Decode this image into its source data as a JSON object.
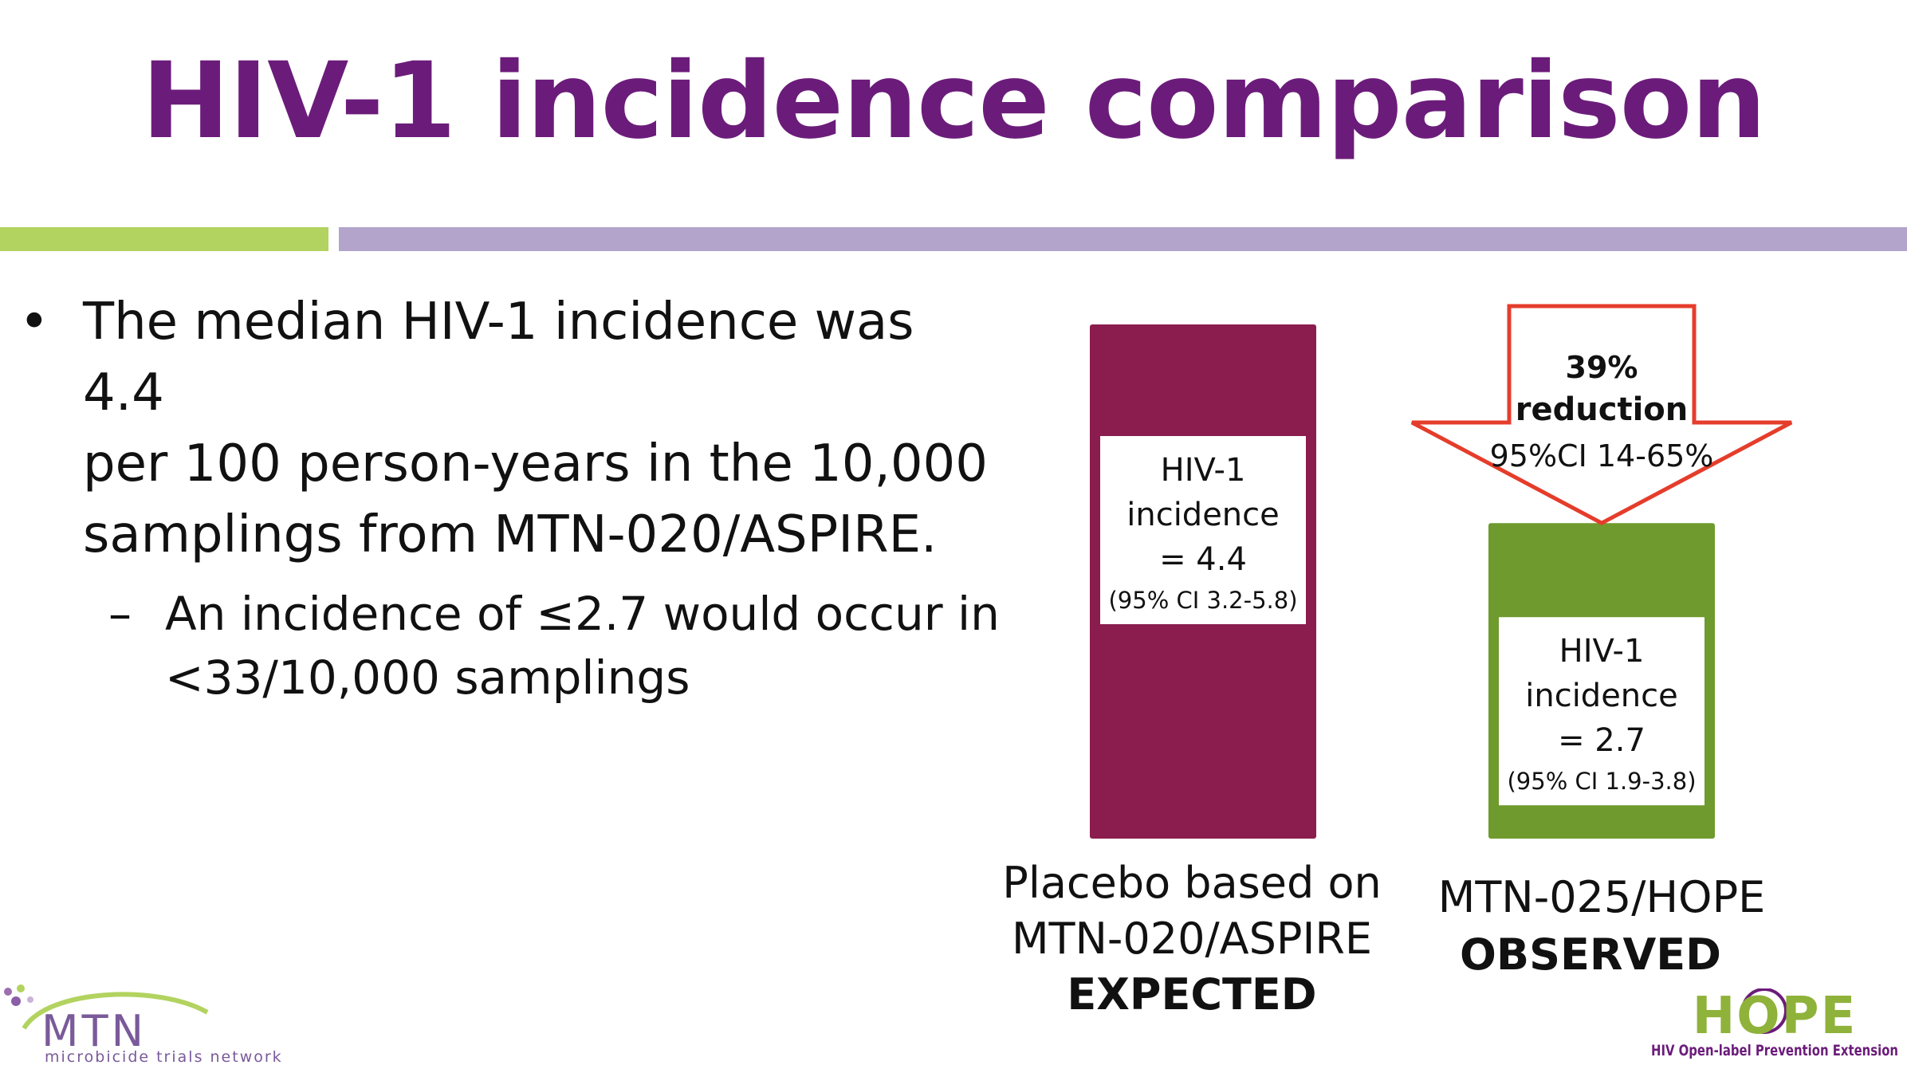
{
  "slide": {
    "title": "HIV-1 incidence comparison",
    "bullets": [
      {
        "text": "The median HIV-1 incidence was 4.4 per 100 person-years in the 10,000 samplings from MTN-020/ASPIRE.",
        "lines": [
          "The median HIV-1 incidence was 4.4",
          "per 100 person-years in the 10,000",
          "samplings from MTN-020/ASPIRE."
        ]
      }
    ],
    "sub_bullets": [
      {
        "text": "An incidence of ≤2.7 would occur in <33/10,000 samplings",
        "lines": [
          "An incidence of ≤2.7 would occur in",
          "<33/10,000 samplings"
        ]
      }
    ],
    "bullet_marker": "•",
    "sub_bullet_marker": "–"
  },
  "colors": {
    "title": "#6b1c7a",
    "stripe_green": "#b2d35f",
    "stripe_purple": "#b3a4cb",
    "bar_expected": "#8b1c4e",
    "bar_observed": "#6f9a2d",
    "arrow_stroke": "#e53d2b"
  },
  "chart_data": {
    "type": "bar",
    "categories": [
      "EXPECTED",
      "OBSERVED"
    ],
    "values": [
      4.4,
      2.7
    ],
    "ylim": [
      0,
      4.4
    ],
    "bars": [
      {
        "label_lines": [
          "Placebo based on",
          "MTN-020/ASPIRE"
        ],
        "label_bold": "EXPECTED",
        "inner_lines": [
          "HIV-1",
          "incidence",
          "= 4.4"
        ],
        "ci": "(95% CI 3.2-5.8)",
        "value": 4.4
      },
      {
        "label_lines": [
          "MTN-025/HOPE"
        ],
        "label_bold": "OBSERVED",
        "inner_lines": [
          "HIV-1",
          "incidence",
          "= 2.7"
        ],
        "ci": "(95% CI 1.9-3.8)",
        "value": 2.7
      }
    ],
    "annotation": {
      "lines": [
        "39%",
        "reduction"
      ],
      "ci": "95%CI 14-65%"
    }
  },
  "logos": {
    "mtn": {
      "name": "MTN",
      "tagline": "microbicide trials network"
    },
    "hope": {
      "name": "HOPE",
      "tagline": "HIV Open-label Prevention Extension"
    }
  }
}
